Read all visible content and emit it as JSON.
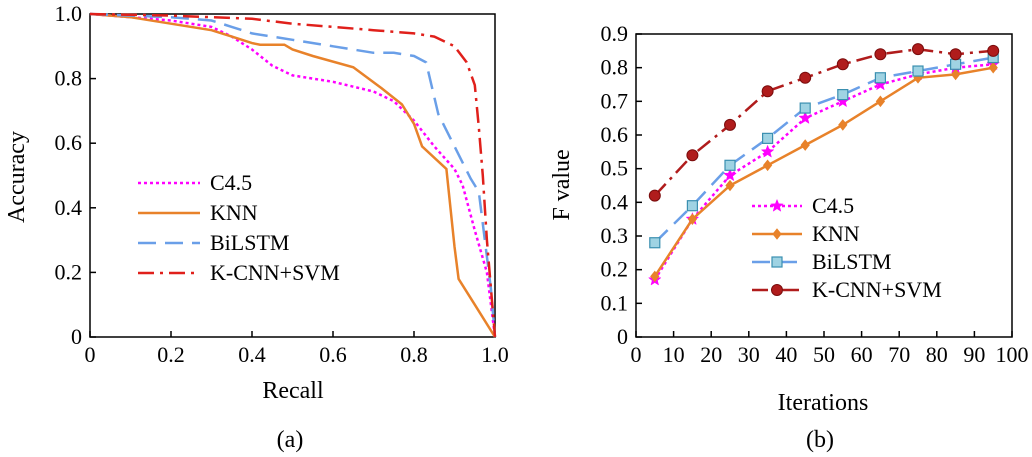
{
  "chart_data": [
    {
      "type": "line",
      "panel": "(a)",
      "xlabel": "Recall",
      "ylabel": "Accuracy",
      "xlim": [
        0,
        1.0
      ],
      "ylim": [
        0,
        1.0
      ],
      "xticks": [
        "0",
        "0.2",
        "0.4",
        "0.6",
        "0.8",
        "1.0"
      ],
      "yticks": [
        "0",
        "0.2",
        "0.4",
        "0.6",
        "0.8",
        "1.0"
      ],
      "legend_position": "bottom-left",
      "series": [
        {
          "name": "C4.5",
          "color": "#ff00ff",
          "style": "dotted",
          "x": [
            0,
            0.1,
            0.2,
            0.3,
            0.35,
            0.4,
            0.45,
            0.5,
            0.6,
            0.7,
            0.75,
            0.8,
            0.85,
            0.9,
            0.92,
            0.95,
            0.98,
            1.0
          ],
          "y": [
            1.0,
            0.99,
            0.98,
            0.96,
            0.93,
            0.89,
            0.84,
            0.81,
            0.79,
            0.76,
            0.73,
            0.67,
            0.59,
            0.52,
            0.47,
            0.33,
            0.2,
            0
          ]
        },
        {
          "name": "KNN",
          "color": "#e8822a",
          "style": "solid",
          "x": [
            0,
            0.1,
            0.2,
            0.3,
            0.35,
            0.4,
            0.42,
            0.48,
            0.5,
            0.55,
            0.65,
            0.72,
            0.77,
            0.8,
            0.82,
            0.88,
            0.9,
            0.91,
            0.95,
            1.0
          ],
          "y": [
            1.0,
            0.99,
            0.97,
            0.95,
            0.93,
            0.91,
            0.905,
            0.905,
            0.89,
            0.87,
            0.835,
            0.77,
            0.72,
            0.66,
            0.59,
            0.52,
            0.28,
            0.18,
            0.1,
            0
          ]
        },
        {
          "name": "BiLSTM",
          "color": "#6a9fe8",
          "style": "dashed",
          "x": [
            0,
            0.1,
            0.2,
            0.3,
            0.35,
            0.4,
            0.5,
            0.6,
            0.7,
            0.75,
            0.8,
            0.83,
            0.86,
            0.9,
            0.94,
            0.96,
            0.99,
            1.0
          ],
          "y": [
            1.0,
            0.995,
            0.99,
            0.98,
            0.96,
            0.94,
            0.92,
            0.9,
            0.88,
            0.88,
            0.87,
            0.85,
            0.69,
            0.59,
            0.49,
            0.45,
            0.15,
            0
          ]
        },
        {
          "name": "K-CNN+SVM",
          "color": "#e0201b",
          "style": "dashdot",
          "x": [
            0,
            0.2,
            0.4,
            0.5,
            0.6,
            0.7,
            0.8,
            0.85,
            0.9,
            0.93,
            0.95,
            0.96,
            0.97,
            0.98,
            1.0
          ],
          "y": [
            1.0,
            0.995,
            0.985,
            0.97,
            0.96,
            0.95,
            0.94,
            0.93,
            0.9,
            0.85,
            0.78,
            0.65,
            0.5,
            0.3,
            0
          ]
        }
      ]
    },
    {
      "type": "line",
      "panel": "(b)",
      "xlabel": "Iterations",
      "ylabel": "F value",
      "xlim": [
        0,
        100
      ],
      "ylim": [
        0,
        0.9
      ],
      "xticks": [
        "0",
        "10",
        "20",
        "30",
        "40",
        "50",
        "60",
        "70",
        "80",
        "90",
        "100"
      ],
      "yticks": [
        "0",
        "0.1",
        "0.2",
        "0.3",
        "0.4",
        "0.5",
        "0.6",
        "0.7",
        "0.8",
        "0.9"
      ],
      "legend_position": "bottom-center",
      "x": [
        5,
        15,
        25,
        35,
        45,
        55,
        65,
        75,
        85,
        95
      ],
      "series": [
        {
          "name": "C4.5",
          "color": "#ff00ff",
          "style": "dotted",
          "marker": "star",
          "values": [
            0.17,
            0.35,
            0.48,
            0.55,
            0.65,
            0.7,
            0.75,
            0.78,
            0.8,
            0.81
          ]
        },
        {
          "name": "KNN",
          "color": "#e8822a",
          "style": "solid",
          "marker": "diamond",
          "values": [
            0.18,
            0.35,
            0.45,
            0.51,
            0.57,
            0.63,
            0.7,
            0.77,
            0.78,
            0.8
          ]
        },
        {
          "name": "BiLSTM",
          "color": "#6a9fe8",
          "style": "dashed",
          "marker": "square",
          "values": [
            0.28,
            0.39,
            0.51,
            0.59,
            0.68,
            0.72,
            0.77,
            0.79,
            0.81,
            0.83
          ]
        },
        {
          "name": "K-CNN+SVM",
          "color": "#b01c1c",
          "style": "dashdot",
          "marker": "circle",
          "values": [
            0.42,
            0.54,
            0.63,
            0.73,
            0.77,
            0.81,
            0.84,
            0.855,
            0.84,
            0.85
          ]
        }
      ]
    }
  ],
  "captions": {
    "a": "(a)",
    "b": "(b)"
  }
}
